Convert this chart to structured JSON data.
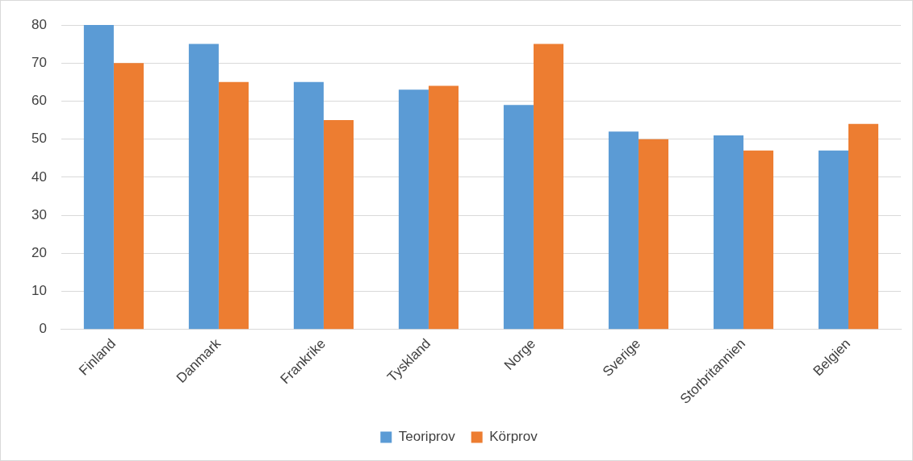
{
  "chart_data": {
    "type": "bar",
    "categories": [
      "Finland",
      "Danmark",
      "Frankrike",
      "Tyskland",
      "Norge",
      "Sverige",
      "Storbritannien",
      "Belgien"
    ],
    "series": [
      {
        "name": "Teoriprov",
        "color": "#5b9bd5",
        "values": [
          80,
          75,
          65,
          63,
          59,
          52,
          51,
          47
        ]
      },
      {
        "name": "Körprov",
        "color": "#ed7d31",
        "values": [
          70,
          65,
          55,
          64,
          75,
          50,
          47,
          54
        ]
      }
    ],
    "ylim": [
      0,
      80
    ],
    "yticks": [
      0,
      10,
      20,
      30,
      40,
      50,
      60,
      70,
      80
    ],
    "grid": "y",
    "legend": "bottom"
  }
}
